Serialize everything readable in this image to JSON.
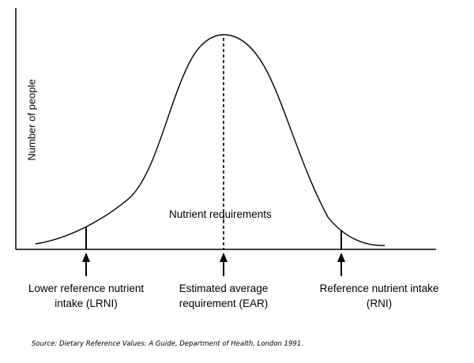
{
  "y_axis_label": "Number of people",
  "curve_label": "Nutrient requirements",
  "markers": [
    {
      "id": "lrni",
      "line1": "Lower reference nutrient",
      "line2": "intake (LRNI)"
    },
    {
      "id": "ear",
      "line1": "Estimated average",
      "line2": "requirement (EAR)"
    },
    {
      "id": "rni",
      "line1": "Reference nutrient intake",
      "line2": "(RNI)"
    }
  ],
  "source": "Source: Dietary Reference Values: A Guide, Department of Health, London 1991."
}
